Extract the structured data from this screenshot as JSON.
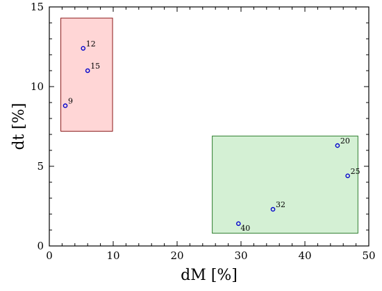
{
  "chart_data": {
    "type": "scatter",
    "title": "",
    "xlabel": "dM  [%]",
    "ylabel": "dt  [%]",
    "xlim": [
      0,
      50
    ],
    "ylim": [
      0,
      15
    ],
    "xticks": [
      "0",
      "10",
      "20",
      "30",
      "40",
      "50"
    ],
    "yticks": [
      "0",
      "5",
      "10",
      "15"
    ],
    "grid": false,
    "legend": "none",
    "point_color": "#0000cc",
    "regions": [
      {
        "x": [
          1.8,
          9.9
        ],
        "y": [
          7.2,
          14.3
        ],
        "fill": "#ffd6d6",
        "stroke": "#8b1a1a"
      },
      {
        "x": [
          25.5,
          48.3
        ],
        "y": [
          0.8,
          6.9
        ],
        "fill": "#d4f0d4",
        "stroke": "#2e7d2e"
      }
    ],
    "points": [
      {
        "label": "12",
        "x": 5.3,
        "y": 12.4
      },
      {
        "label": "15",
        "x": 6.0,
        "y": 11.0
      },
      {
        "label": "9",
        "x": 2.5,
        "y": 8.8
      },
      {
        "label": "20",
        "x": 45.1,
        "y": 6.3
      },
      {
        "label": "25",
        "x": 46.7,
        "y": 4.4
      },
      {
        "label": "32",
        "x": 35.0,
        "y": 2.3
      },
      {
        "label": "40",
        "x": 29.6,
        "y": 1.4
      }
    ]
  }
}
